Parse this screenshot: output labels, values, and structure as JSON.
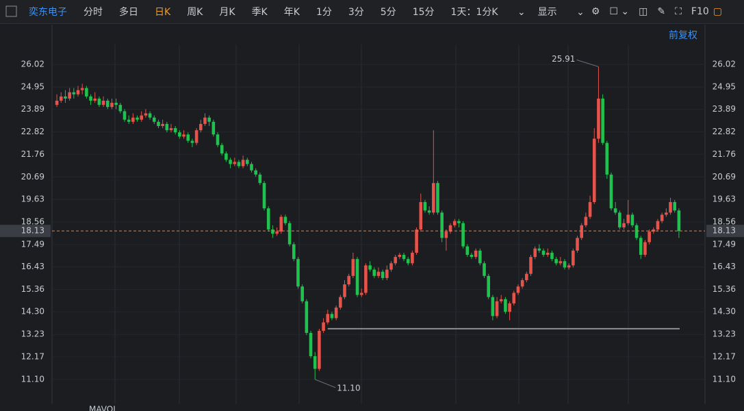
{
  "toolbar": {
    "stock": "奕东电子",
    "tabs": [
      "分时",
      "多日",
      "日K",
      "周K",
      "月K",
      "季K",
      "年K",
      "1分",
      "3分",
      "5分",
      "15分"
    ],
    "active_tab": 2,
    "range": "1天：1分K",
    "display": "显示",
    "f10": "F10",
    "adjust": "前复权"
  },
  "chart_data": {
    "type": "candlestick",
    "up_color": "#e5534b",
    "down_color": "#1fc24e",
    "ylim": [
      10.09,
      26.96
    ],
    "yticks": [
      26.02,
      24.95,
      23.89,
      22.82,
      21.76,
      20.69,
      19.63,
      18.56,
      17.49,
      16.43,
      15.36,
      {
        "value": 14.3,
        "label": "14.30"
      },
      13.23,
      12.17,
      {
        "value": 11.1,
        "label": "11.10"
      }
    ],
    "grid": true,
    "current_price": 18.13,
    "high_label": 25.91,
    "low_label": {
      "value": 11.1,
      "label": "11.10"
    },
    "support_line": 13.5,
    "volume_legend": "MAVOL",
    "ohlc": [
      [
        24.1,
        24.6,
        24.0,
        24.3
      ],
      [
        24.3,
        24.7,
        24.2,
        24.5
      ],
      [
        24.5,
        24.8,
        24.2,
        24.4
      ],
      [
        24.4,
        24.9,
        24.3,
        24.7
      ],
      [
        24.7,
        24.9,
        24.4,
        24.6
      ],
      [
        24.6,
        25.0,
        24.5,
        24.8
      ],
      [
        24.8,
        25.1,
        24.6,
        24.9
      ],
      [
        24.9,
        25.0,
        24.4,
        24.5
      ],
      [
        24.5,
        24.6,
        24.1,
        24.3
      ],
      [
        24.3,
        24.7,
        24.2,
        24.4
      ],
      [
        24.4,
        24.5,
        24.0,
        24.1
      ],
      [
        24.1,
        24.5,
        24.0,
        24.3
      ],
      [
        24.3,
        24.4,
        23.9,
        24.0
      ],
      [
        24.0,
        24.4,
        23.9,
        24.2
      ],
      [
        24.2,
        24.4,
        23.9,
        24.1
      ],
      [
        24.1,
        24.2,
        23.7,
        23.8
      ],
      [
        23.8,
        23.9,
        23.3,
        23.4
      ],
      [
        23.4,
        23.6,
        23.2,
        23.3
      ],
      [
        23.3,
        23.7,
        23.2,
        23.5
      ],
      [
        23.5,
        23.6,
        23.3,
        23.4
      ],
      [
        23.4,
        23.8,
        23.3,
        23.6
      ],
      [
        23.6,
        23.9,
        23.5,
        23.7
      ],
      [
        23.7,
        23.8,
        23.4,
        23.5
      ],
      [
        23.5,
        23.6,
        23.2,
        23.3
      ],
      [
        23.3,
        23.4,
        23.0,
        23.1
      ],
      [
        23.1,
        23.4,
        23.0,
        23.2
      ],
      [
        23.2,
        23.3,
        22.8,
        22.9
      ],
      [
        22.9,
        23.2,
        22.8,
        23.0
      ],
      [
        23.0,
        23.1,
        22.7,
        22.8
      ],
      [
        22.8,
        22.9,
        22.5,
        22.6
      ],
      [
        22.6,
        22.9,
        22.5,
        22.7
      ],
      [
        22.7,
        22.8,
        22.3,
        22.4
      ],
      [
        22.4,
        22.5,
        22.1,
        22.3
      ],
      [
        22.3,
        23.0,
        22.2,
        22.9
      ],
      [
        22.9,
        23.4,
        22.8,
        23.2
      ],
      [
        23.2,
        23.7,
        23.1,
        23.5
      ],
      [
        23.5,
        23.6,
        23.1,
        23.3
      ],
      [
        23.3,
        23.4,
        22.6,
        22.7
      ],
      [
        22.7,
        22.8,
        22.1,
        22.2
      ],
      [
        22.2,
        22.3,
        21.7,
        21.8
      ],
      [
        21.8,
        21.9,
        21.4,
        21.5
      ],
      [
        21.5,
        21.6,
        21.1,
        21.3
      ],
      [
        21.3,
        21.6,
        21.2,
        21.4
      ],
      [
        21.4,
        21.5,
        21.1,
        21.2
      ],
      [
        21.2,
        21.7,
        21.1,
        21.5
      ],
      [
        21.5,
        21.6,
        21.2,
        21.3
      ],
      [
        21.3,
        21.4,
        20.9,
        21.0
      ],
      [
        21.0,
        21.1,
        20.7,
        20.8
      ],
      [
        20.8,
        20.9,
        20.3,
        20.4
      ],
      [
        20.4,
        20.5,
        19.1,
        19.2
      ],
      [
        19.2,
        19.3,
        18.1,
        18.2
      ],
      [
        18.2,
        18.4,
        17.8,
        18.0
      ],
      [
        18.0,
        18.3,
        17.9,
        18.1
      ],
      [
        18.1,
        18.9,
        18.0,
        18.8
      ],
      [
        18.8,
        18.9,
        18.4,
        18.5
      ],
      [
        18.5,
        18.6,
        17.4,
        17.5
      ],
      [
        17.5,
        17.6,
        16.7,
        16.8
      ],
      [
        16.8,
        16.9,
        15.4,
        15.5
      ],
      [
        15.5,
        15.6,
        14.7,
        14.8
      ],
      [
        14.8,
        14.9,
        13.2,
        13.3
      ],
      [
        13.3,
        13.4,
        12.1,
        12.2
      ],
      [
        12.2,
        12.4,
        11.1,
        11.6
      ],
      [
        11.6,
        13.5,
        11.5,
        13.4
      ],
      [
        13.4,
        14.0,
        13.3,
        13.8
      ],
      [
        13.8,
        14.4,
        13.7,
        14.2
      ],
      [
        14.2,
        14.3,
        13.9,
        14.0
      ],
      [
        14.0,
        14.6,
        13.9,
        14.5
      ],
      [
        14.5,
        15.1,
        14.4,
        15.0
      ],
      [
        15.0,
        15.8,
        14.9,
        15.6
      ],
      [
        15.6,
        16.1,
        15.5,
        16.0
      ],
      [
        16.0,
        17.1,
        15.9,
        16.8
      ],
      [
        16.8,
        16.9,
        15.0,
        15.1
      ],
      [
        15.1,
        15.4,
        15.0,
        15.2
      ],
      [
        15.2,
        16.6,
        15.1,
        16.5
      ],
      [
        16.5,
        16.7,
        16.2,
        16.3
      ],
      [
        16.3,
        16.4,
        15.9,
        16.0
      ],
      [
        16.0,
        16.4,
        15.9,
        16.2
      ],
      [
        16.2,
        16.3,
        15.8,
        15.9
      ],
      [
        15.9,
        16.5,
        15.8,
        16.3
      ],
      [
        16.3,
        16.7,
        16.2,
        16.6
      ],
      [
        16.6,
        17.0,
        16.5,
        16.9
      ],
      [
        16.9,
        17.1,
        16.8,
        17.0
      ],
      [
        17.0,
        17.1,
        16.7,
        16.8
      ],
      [
        16.8,
        16.9,
        16.5,
        16.6
      ],
      [
        16.6,
        17.2,
        16.5,
        17.1
      ],
      [
        17.1,
        18.3,
        17.0,
        18.2
      ],
      [
        18.2,
        19.9,
        18.1,
        19.5
      ],
      [
        19.5,
        19.6,
        19.0,
        19.1
      ],
      [
        19.1,
        19.3,
        18.9,
        19.0
      ],
      [
        19.0,
        22.9,
        18.9,
        20.4
      ],
      [
        20.4,
        20.5,
        18.9,
        19.0
      ],
      [
        19.0,
        19.1,
        17.6,
        17.8
      ],
      [
        17.8,
        18.2,
        17.2,
        18.1
      ],
      [
        18.1,
        18.5,
        18.0,
        18.4
      ],
      [
        18.4,
        18.7,
        18.3,
        18.6
      ],
      [
        18.6,
        18.7,
        18.3,
        18.5
      ],
      [
        18.5,
        18.6,
        17.3,
        17.4
      ],
      [
        17.4,
        17.5,
        16.9,
        17.0
      ],
      [
        17.0,
        17.1,
        16.8,
        16.9
      ],
      [
        16.9,
        17.3,
        16.8,
        17.2
      ],
      [
        17.2,
        17.3,
        16.5,
        16.6
      ],
      [
        16.6,
        16.7,
        15.9,
        16.0
      ],
      [
        16.0,
        16.1,
        14.9,
        15.0
      ],
      [
        15.0,
        15.1,
        13.9,
        14.1
      ],
      [
        14.1,
        15.0,
        14.0,
        14.8
      ],
      [
        14.8,
        15.1,
        14.7,
        14.9
      ],
      [
        14.9,
        15.0,
        14.2,
        14.3
      ],
      [
        14.3,
        14.8,
        13.9,
        14.7
      ],
      [
        14.7,
        15.3,
        14.6,
        15.2
      ],
      [
        15.2,
        15.6,
        15.1,
        15.5
      ],
      [
        15.5,
        15.9,
        15.4,
        15.8
      ],
      [
        15.8,
        16.2,
        15.7,
        16.1
      ],
      [
        16.1,
        17.0,
        16.0,
        16.9
      ],
      [
        16.9,
        17.4,
        16.8,
        17.3
      ],
      [
        17.3,
        17.5,
        17.1,
        17.2
      ],
      [
        17.2,
        17.3,
        16.9,
        17.0
      ],
      [
        17.0,
        17.3,
        16.9,
        17.1
      ],
      [
        17.1,
        17.2,
        16.7,
        16.8
      ],
      [
        16.8,
        16.9,
        16.5,
        16.6
      ],
      [
        16.6,
        16.9,
        16.5,
        16.7
      ],
      [
        16.7,
        16.8,
        16.3,
        16.4
      ],
      [
        16.4,
        16.6,
        16.3,
        16.5
      ],
      [
        16.5,
        17.3,
        16.4,
        17.2
      ],
      [
        17.2,
        17.9,
        17.1,
        17.8
      ],
      [
        17.8,
        18.5,
        17.7,
        18.4
      ],
      [
        18.4,
        19.0,
        18.3,
        18.8
      ],
      [
        18.8,
        19.8,
        18.7,
        19.5
      ],
      [
        19.5,
        23.0,
        19.4,
        22.5
      ],
      [
        22.5,
        25.91,
        22.3,
        24.4
      ],
      [
        24.4,
        24.6,
        22.2,
        22.3
      ],
      [
        22.3,
        22.4,
        20.6,
        20.8
      ],
      [
        20.8,
        20.9,
        19.1,
        19.2
      ],
      [
        19.2,
        19.5,
        18.9,
        19.0
      ],
      [
        19.0,
        19.1,
        18.2,
        18.3
      ],
      [
        18.3,
        18.7,
        18.2,
        18.5
      ],
      [
        18.5,
        19.6,
        18.4,
        18.9
      ],
      [
        18.9,
        19.0,
        18.3,
        18.4
      ],
      [
        18.4,
        18.5,
        17.7,
        17.8
      ],
      [
        17.8,
        17.9,
        16.8,
        17.0
      ],
      [
        17.0,
        17.7,
        16.9,
        17.6
      ],
      [
        17.6,
        18.2,
        17.5,
        18.1
      ],
      [
        18.1,
        18.3,
        18.0,
        18.2
      ],
      [
        18.2,
        18.7,
        18.1,
        18.6
      ],
      [
        18.6,
        19.0,
        18.5,
        18.9
      ],
      [
        18.9,
        19.2,
        18.8,
        19.0
      ],
      [
        19.0,
        19.7,
        18.9,
        19.5
      ],
      [
        19.5,
        19.6,
        19.0,
        19.1
      ],
      [
        19.1,
        19.2,
        17.8,
        18.13
      ]
    ]
  }
}
